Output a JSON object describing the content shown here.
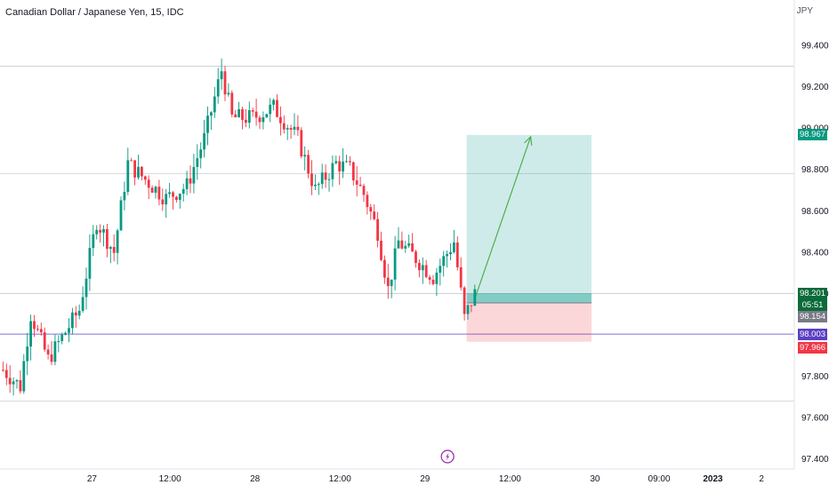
{
  "header": {
    "symbol_title": "Canadian Dollar / Japanese Yen, 15, IDC",
    "currency": "JPY"
  },
  "chart_data": {
    "type": "candlestick",
    "title": "Canadian Dollar / Japanese Yen, 15, IDC",
    "ylabel": "JPY",
    "ylim": [
      97.35,
      99.62
    ],
    "y_ticks": [
      "99.400",
      "99.200",
      "99.000",
      "98.800",
      "98.600",
      "98.400",
      "98.200",
      "97.800",
      "97.600",
      "97.400"
    ],
    "x_ticks": [
      "27",
      "12:00",
      "28",
      "12:00",
      "29",
      "12:00",
      "30",
      "09:00",
      "2023",
      "2"
    ],
    "x_tick_positions_bars": [
      26,
      48.5,
      73,
      97.5,
      122,
      146.5,
      171,
      189.5,
      205,
      219
    ],
    "colors": {
      "up": "#089981",
      "down": "#f23645",
      "horizontal_line": "#7c6fd9",
      "position_target": "#26a69a",
      "position_stop": "#f23645",
      "arrow": "#4caf50"
    },
    "horizontal_lines": [
      {
        "price": 99.3,
        "style": "grey"
      },
      {
        "price": 98.78,
        "style": "grey"
      },
      {
        "price": 98.2,
        "style": "grey"
      },
      {
        "price": 97.68,
        "style": "grey"
      },
      {
        "price": 98.003,
        "style": "purple"
      }
    ],
    "position": {
      "type": "long",
      "entry": 98.154,
      "target": 98.967,
      "stop": 97.966,
      "bar_start": 134,
      "bar_end": 170
    },
    "price_tags": {
      "target": "98.967",
      "last_price": "98.201",
      "countdown": "05:51",
      "entry": "98.154",
      "line": "98.003",
      "stop": "97.966"
    },
    "anchors": [
      {
        "bar": 0,
        "price": 97.83
      },
      {
        "bar": 5,
        "price": 97.75
      },
      {
        "bar": 8,
        "price": 98.1
      },
      {
        "bar": 13,
        "price": 97.88
      },
      {
        "bar": 22,
        "price": 98.12
      },
      {
        "bar": 27,
        "price": 98.55
      },
      {
        "bar": 32,
        "price": 98.4
      },
      {
        "bar": 36,
        "price": 98.83
      },
      {
        "bar": 43,
        "price": 98.72
      },
      {
        "bar": 47,
        "price": 98.66
      },
      {
        "bar": 53,
        "price": 98.72
      },
      {
        "bar": 58,
        "price": 98.95
      },
      {
        "bar": 63,
        "price": 99.28
      },
      {
        "bar": 66,
        "price": 99.05
      },
      {
        "bar": 72,
        "price": 99.05
      },
      {
        "bar": 78,
        "price": 99.1
      },
      {
        "bar": 85,
        "price": 98.95
      },
      {
        "bar": 90,
        "price": 98.7
      },
      {
        "bar": 96,
        "price": 98.83
      },
      {
        "bar": 100,
        "price": 98.8
      },
      {
        "bar": 104,
        "price": 98.68
      },
      {
        "bar": 108,
        "price": 98.5
      },
      {
        "bar": 111,
        "price": 98.22
      },
      {
        "bar": 114,
        "price": 98.45
      },
      {
        "bar": 119,
        "price": 98.37
      },
      {
        "bar": 124,
        "price": 98.28
      },
      {
        "bar": 130,
        "price": 98.45
      },
      {
        "bar": 133,
        "price": 98.08
      },
      {
        "bar": 136,
        "price": 98.2
      }
    ]
  }
}
